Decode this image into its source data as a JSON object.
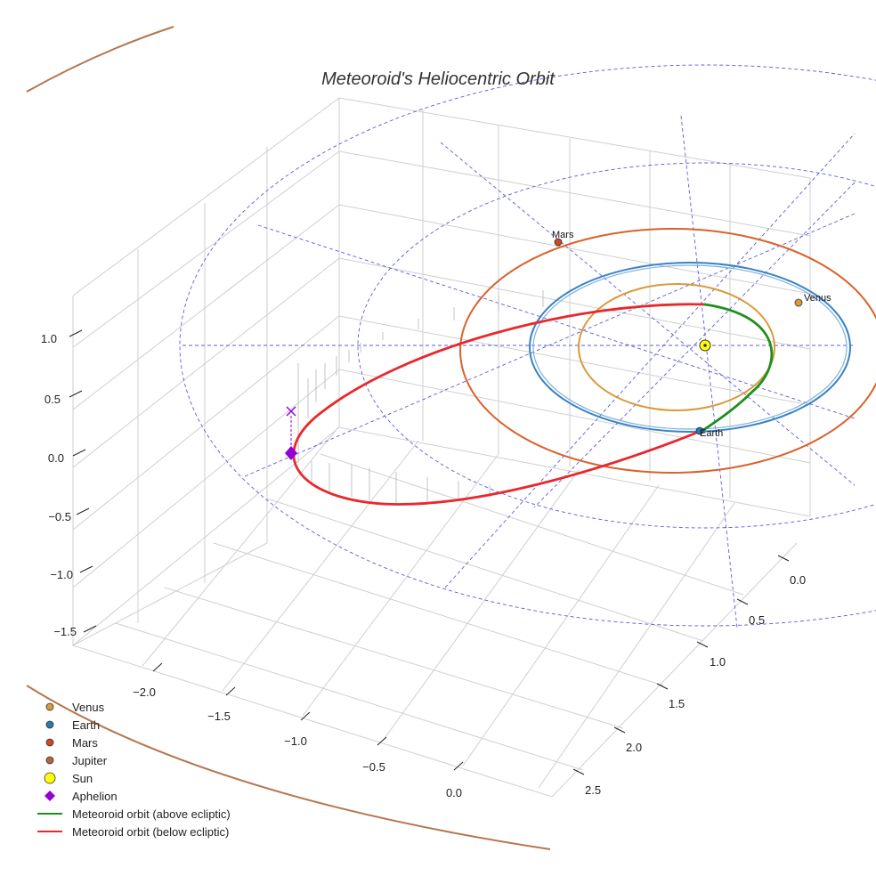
{
  "chart_data": {
    "type": "line3d",
    "title": "Meteoroid's Heliocentric Orbit",
    "axes": {
      "x": {
        "label": "",
        "ticks": [
          -2.0,
          -1.5,
          -1.0,
          -0.5,
          0.0
        ],
        "tick_labels": [
          "−2.0",
          "−1.5",
          "−1.0",
          "−0.5",
          "0.0"
        ]
      },
      "y": {
        "label": "",
        "ticks": [
          0.0,
          0.5,
          1.0,
          1.5,
          2.0,
          2.5
        ],
        "tick_labels": [
          "0.0",
          "0.5",
          "1.0",
          "1.5",
          "2.0",
          "2.5"
        ]
      },
      "z": {
        "label": "",
        "ticks": [
          -1.5,
          -1.0,
          -0.5,
          0.0,
          0.5,
          1.0
        ],
        "tick_labels": [
          "−1.5",
          "−1.0",
          "−0.5",
          "0.0",
          "0.5",
          "1.0"
        ]
      },
      "grid": true
    },
    "planets": [
      {
        "name": "Venus",
        "orbit_radius_au": 0.72,
        "position_label": "Venus",
        "color": "#d99a3a"
      },
      {
        "name": "Earth",
        "orbit_radius_au": 1.0,
        "position_label": "Earth",
        "color": "#3b82c4"
      },
      {
        "name": "Mars",
        "orbit_radius_au": 1.52,
        "position_label": "Mars",
        "color": "#d9622b"
      },
      {
        "name": "Jupiter",
        "orbit_radius_au": 5.2,
        "position_label": "",
        "color": "#b5774f"
      }
    ],
    "sun": {
      "name": "Sun",
      "color": "#ffff00"
    },
    "aphelion": {
      "name": "Aphelion",
      "color": "#9400d3"
    },
    "meteoroid_orbit": {
      "above_label": "Meteoroid orbit (above ecliptic)",
      "below_label": "Meteoroid orbit (below ecliptic)",
      "above_color": "#1f8f1f",
      "below_color": "#e8292c"
    },
    "legend": [
      {
        "label": "Venus",
        "kind": "dot",
        "color": "#d99a3a"
      },
      {
        "label": "Earth",
        "kind": "dot",
        "color": "#2a77b4"
      },
      {
        "label": "Mars",
        "kind": "dot",
        "color": "#c94a1e"
      },
      {
        "label": "Jupiter",
        "kind": "dot",
        "color": "#b5663a"
      },
      {
        "label": "Sun",
        "kind": "bigdot",
        "color": "#ffff00"
      },
      {
        "label": "Aphelion",
        "kind": "diamond",
        "color": "#9400d3"
      },
      {
        "label": "Meteoroid orbit (above ecliptic)",
        "kind": "line",
        "color": "#1f8f1f"
      },
      {
        "label": "Meteoroid orbit (below ecliptic)",
        "kind": "line",
        "color": "#e8292c"
      }
    ],
    "legend_position": "bottom-left"
  }
}
